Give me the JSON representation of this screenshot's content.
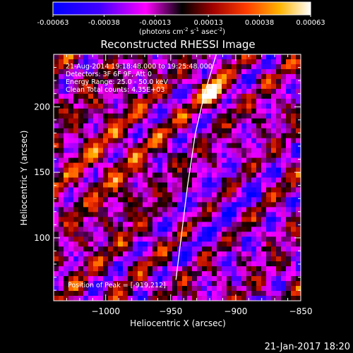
{
  "colorbar": {
    "ticks": [
      "-0.00063",
      "-0.00038",
      "-0.00013",
      "0.00013",
      "0.00038",
      "0.00063"
    ],
    "tick_values": [
      -0.00063,
      -0.00038,
      -0.00013,
      0.00013,
      0.00038,
      0.00063
    ],
    "range": [
      -0.00063,
      0.00063
    ],
    "unit_label_parts": [
      "(photons cm",
      "-2",
      " s",
      "-1",
      " asec",
      "-2",
      ")"
    ],
    "colors": {
      "negative_low": "#0000ff",
      "negative_high": "#ff00ff",
      "zero": "#000000",
      "mid": "#c81e00",
      "high": "#ff9600",
      "top": "#ffffff"
    }
  },
  "chart_data": {
    "type": "heatmap",
    "title": "Reconstructed RHESSI Image",
    "xlabel": "Heliocentric X (arcsec)",
    "ylabel": "Heliocentric Y (arcsec)",
    "xlim": [
      -1040,
      -850
    ],
    "ylim": [
      52,
      240
    ],
    "xticks": [
      -1000,
      -950,
      -900,
      -850
    ],
    "xtick_labels": [
      "−1000",
      "−950",
      "−900",
      "−850"
    ],
    "yticks": [
      100,
      150,
      200
    ],
    "ytick_labels": [
      "100",
      "150",
      "200"
    ],
    "limb_curve": [
      [
        -946,
        68
      ],
      [
        -942,
        100
      ],
      [
        -937,
        140
      ],
      [
        -931,
        180
      ],
      [
        -924,
        210
      ],
      [
        -915,
        240
      ]
    ],
    "peak": {
      "x": -919,
      "y": 212
    },
    "annotations": [
      "21-Aug-2014 19:18:48.000 to 19:25:48.000",
      "Detectors: 3F 6F 9F, Att 0",
      "Energy Range: 25.0 - 50.0 keV",
      "Clean    Total counts: 4.35E+03"
    ],
    "peak_label": "Position of Peak = [-919,212]"
  },
  "footer": {
    "timestamp": "21-Jan-2017 18:20"
  }
}
